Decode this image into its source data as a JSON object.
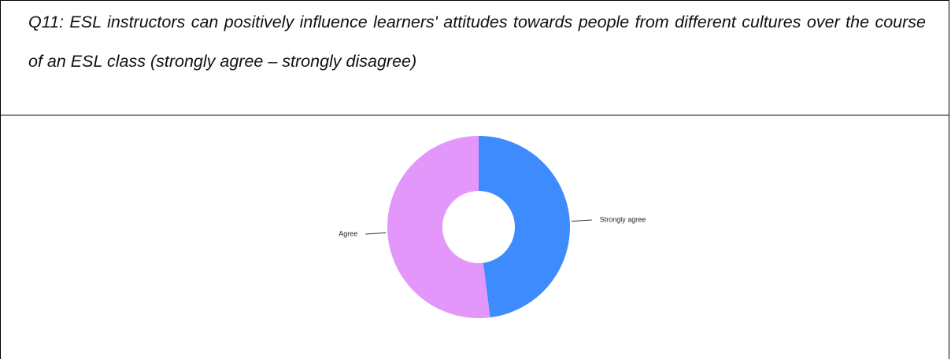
{
  "question": "Q11: ESL instructors can positively influence learners' attitudes towards people from different cultures over the course of an ESL class (strongly agree – strongly disagree)",
  "chart_data": {
    "type": "donut",
    "categories": [
      "Strongly agree",
      "Agree"
    ],
    "values": [
      48,
      52
    ],
    "colors": [
      "#3d8bfd",
      "#e497fb"
    ]
  }
}
